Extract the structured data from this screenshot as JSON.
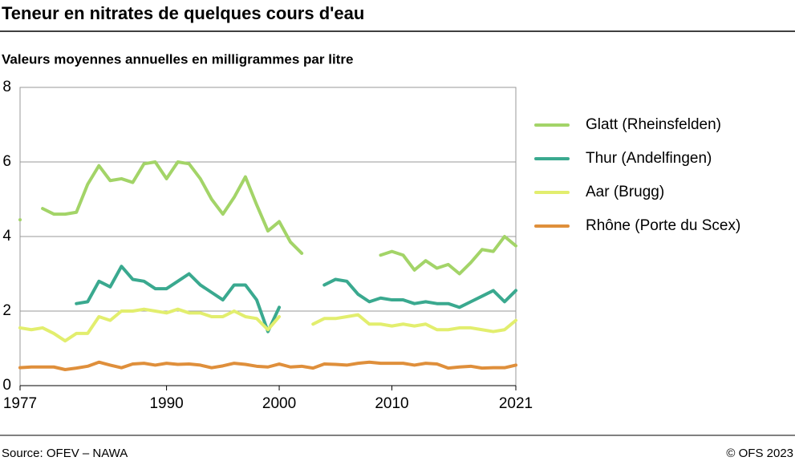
{
  "chart_data": {
    "type": "line",
    "title": "Teneur en nitrates de quelques cours d'eau",
    "subtitle": "Valeurs moyennes annuelles en milligrammes par litre",
    "source": "Source: OFEV – NAWA",
    "copyright": "© OFS 2023",
    "x": [
      1977,
      1978,
      1979,
      1980,
      1981,
      1982,
      1983,
      1984,
      1985,
      1986,
      1987,
      1988,
      1989,
      1990,
      1991,
      1992,
      1993,
      1994,
      1995,
      1996,
      1997,
      1998,
      1999,
      2000,
      2001,
      2002,
      2003,
      2004,
      2005,
      2006,
      2007,
      2008,
      2009,
      2010,
      2011,
      2012,
      2013,
      2014,
      2015,
      2016,
      2017,
      2018,
      2019,
      2020,
      2021
    ],
    "xlim": [
      1977,
      2021
    ],
    "xticks": [
      1977,
      1990,
      2000,
      2010,
      2021
    ],
    "ylim": [
      0,
      8
    ],
    "yticks": [
      0,
      2,
      4,
      6,
      8
    ],
    "grid": true,
    "legend": "right",
    "series": [
      {
        "name": "Glatt (Rheinsfelden)",
        "color": "#a3d468",
        "values": [
          4.45,
          null,
          4.75,
          4.6,
          4.6,
          4.65,
          5.4,
          5.9,
          5.5,
          5.55,
          5.45,
          5.95,
          6.0,
          5.55,
          6.0,
          5.95,
          5.55,
          5.0,
          4.6,
          5.05,
          5.6,
          4.85,
          4.15,
          4.4,
          3.85,
          3.55,
          null,
          null,
          null,
          null,
          null,
          null,
          3.5,
          3.6,
          3.5,
          3.1,
          3.35,
          3.15,
          3.25,
          3.0,
          3.3,
          3.65,
          3.6,
          4.0,
          3.75
        ]
      },
      {
        "name": "Thur (Andelfingen)",
        "color": "#3aa98f",
        "values": [
          null,
          null,
          null,
          null,
          null,
          2.2,
          2.25,
          2.8,
          2.65,
          3.2,
          2.85,
          2.8,
          2.6,
          2.6,
          2.8,
          3.0,
          2.7,
          2.5,
          2.3,
          2.7,
          2.7,
          2.3,
          1.45,
          2.1,
          null,
          null,
          null,
          2.7,
          2.85,
          2.8,
          2.45,
          2.25,
          2.35,
          2.3,
          2.3,
          2.2,
          2.25,
          2.2,
          2.2,
          2.1,
          2.25,
          2.4,
          2.55,
          2.25,
          2.55
        ]
      },
      {
        "name": "Aar (Brugg)",
        "color": "#e2ee6e",
        "values": [
          1.55,
          1.5,
          1.55,
          1.4,
          1.2,
          1.4,
          1.4,
          1.85,
          1.75,
          2.0,
          2.0,
          2.05,
          2.0,
          1.95,
          2.05,
          1.95,
          1.95,
          1.85,
          1.85,
          2.0,
          1.85,
          1.8,
          1.5,
          1.85,
          null,
          null,
          1.65,
          1.8,
          1.8,
          1.85,
          1.9,
          1.65,
          1.65,
          1.6,
          1.65,
          1.6,
          1.65,
          1.5,
          1.5,
          1.55,
          1.55,
          1.5,
          1.45,
          1.5,
          1.75
        ]
      },
      {
        "name": "Rhône (Porte du Scex)",
        "color": "#df8f3b",
        "values": [
          0.48,
          0.5,
          0.5,
          0.5,
          0.43,
          0.47,
          0.52,
          0.63,
          0.55,
          0.48,
          0.58,
          0.6,
          0.55,
          0.6,
          0.57,
          0.58,
          0.55,
          0.48,
          0.53,
          0.6,
          0.57,
          0.52,
          0.5,
          0.58,
          0.5,
          0.52,
          0.47,
          0.58,
          0.57,
          0.55,
          0.6,
          0.63,
          0.6,
          0.6,
          0.6,
          0.55,
          0.6,
          0.58,
          0.47,
          0.5,
          0.52,
          0.47,
          0.48,
          0.48,
          0.55
        ]
      }
    ]
  }
}
